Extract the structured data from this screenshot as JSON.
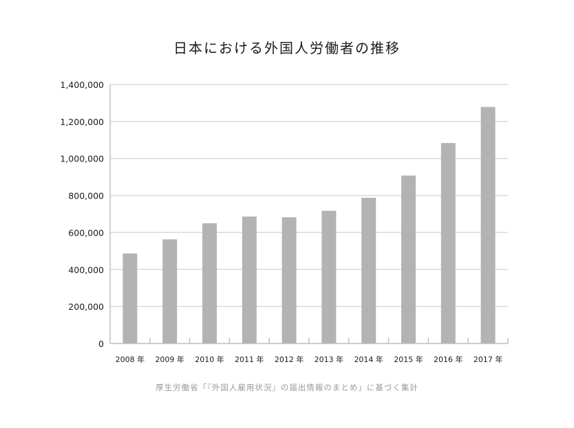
{
  "title": "日本における外国人労働者の推移",
  "source": "厚生労働省「『外国人雇用状況』の届出情報のまとめ」に基づく集計",
  "chart_data": {
    "type": "bar",
    "title": "日本における外国人労働者の推移",
    "xlabel": "",
    "ylabel": "",
    "categories": [
      "2008 年",
      "2009 年",
      "2010 年",
      "2011 年",
      "2012 年",
      "2013 年",
      "2014 年",
      "2015 年",
      "2016 年",
      "2017 年"
    ],
    "values": [
      486398,
      562818,
      649982,
      686246,
      682450,
      717504,
      787627,
      907896,
      1083769,
      1278670
    ],
    "ylim": [
      0,
      1400000
    ],
    "yticks": [
      0,
      200000,
      400000,
      600000,
      800000,
      1000000,
      1200000,
      1400000
    ],
    "ytick_labels": [
      "0",
      "200,000",
      "400,000",
      "600,000",
      "800,000",
      "1,000,000",
      "1,200,000",
      "1,400,000"
    ],
    "grid": true,
    "bar_color": "#b3b3b3",
    "grid_color": "#d9d9d9",
    "axis_color": "#bdbdbd"
  }
}
